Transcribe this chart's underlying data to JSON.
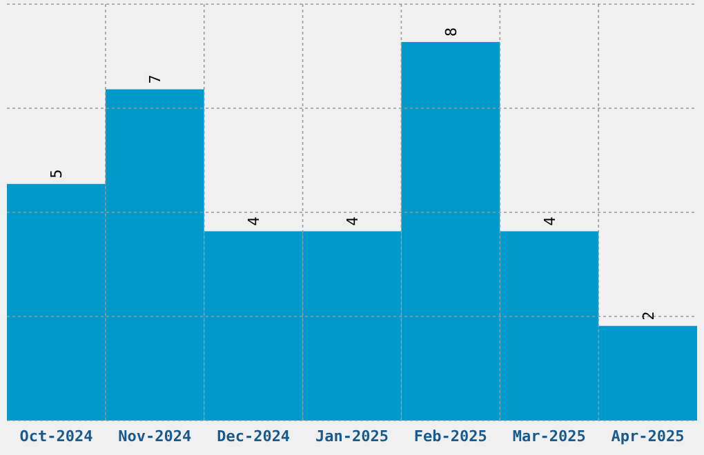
{
  "chart_data": {
    "type": "bar",
    "categories": [
      "Oct-2024",
      "Nov-2024",
      "Dec-2024",
      "Jan-2025",
      "Feb-2025",
      "Mar-2025",
      "Apr-2025"
    ],
    "values": [
      5,
      7,
      4,
      4,
      8,
      4,
      2
    ],
    "color": "#0099cc",
    "ylim": [
      0,
      8.8
    ],
    "yticks": [
      {
        "value": 0,
        "label": null
      },
      {
        "value": 2.2,
        "label": null
      },
      {
        "value": 4.4,
        "label": null
      },
      {
        "value": 6.6,
        "label": null
      },
      {
        "value": 8.8,
        "label": null
      }
    ],
    "tick_labels": "x",
    "grid": true,
    "data_labels": true
  }
}
